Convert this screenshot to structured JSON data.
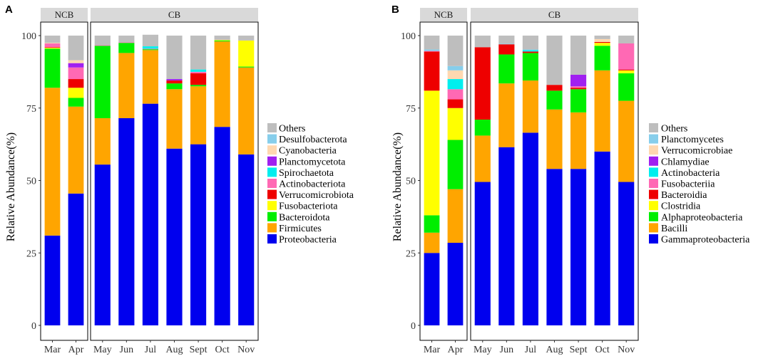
{
  "chart_data": [
    {
      "panel": "A",
      "type": "bar",
      "stacked": true,
      "ylabel": "Relative Abundance(%)",
      "xlabel": "",
      "ylim": [
        0,
        100
      ],
      "yticks": [
        0,
        25,
        50,
        75,
        100
      ],
      "facets": [
        {
          "label": "NCB",
          "categories": [
            "Mar",
            "Apr"
          ]
        },
        {
          "label": "CB",
          "categories": [
            "May",
            "Jun",
            "Jul",
            "Aug",
            "Sept",
            "Oct",
            "Nov"
          ]
        }
      ],
      "categories": [
        "Mar",
        "Apr",
        "May",
        "Jun",
        "Jul",
        "Aug",
        "Sept",
        "Oct",
        "Nov"
      ],
      "legend_title": "",
      "legend_position": "right",
      "series": [
        {
          "name": "Proteobacteria",
          "color": "#0000EE",
          "values": [
            31,
            45.5,
            55.5,
            71.5,
            76.5,
            61,
            62.5,
            68.5,
            59
          ]
        },
        {
          "name": "Firmicutes",
          "color": "#FFA500",
          "values": [
            51,
            30,
            16,
            22.5,
            18.5,
            20.5,
            20,
            29.5,
            30
          ]
        },
        {
          "name": "Bacteroidota",
          "color": "#00EE00",
          "values": [
            13.5,
            3,
            25,
            3.5,
            0.3,
            2,
            0.5,
            0.3,
            0.3
          ]
        },
        {
          "name": "Fusobacteriota",
          "color": "#FFFF00",
          "values": [
            0.3,
            3.5,
            0,
            0,
            0,
            0,
            0,
            0.2,
            9
          ]
        },
        {
          "name": "Verrucomicrobiota",
          "color": "#EE0000",
          "values": [
            0.2,
            3,
            0,
            0,
            0,
            1,
            4,
            0,
            0
          ]
        },
        {
          "name": "Actinobacteriota",
          "color": "#FF69B4",
          "values": [
            1.3,
            4,
            0.2,
            0.2,
            0.2,
            0,
            0.5,
            0,
            0
          ]
        },
        {
          "name": "Spirochaetota",
          "color": "#00EEEE",
          "values": [
            0,
            0,
            0,
            0,
            0.8,
            0,
            0.8,
            0,
            0
          ]
        },
        {
          "name": "Planctomycetota",
          "color": "#A020F0",
          "values": [
            0,
            1.5,
            0,
            0,
            0,
            0.5,
            0,
            0,
            0
          ]
        },
        {
          "name": "Cyanobacteria",
          "color": "#FFD8B0",
          "values": [
            0.2,
            1,
            0,
            0,
            0,
            0,
            0,
            0,
            0
          ]
        },
        {
          "name": "Desulfobacterota",
          "color": "#87CEEB",
          "values": [
            0,
            0,
            0,
            0,
            0,
            0,
            0,
            0,
            0
          ]
        },
        {
          "name": "Others",
          "color": "#BEBEBE",
          "values": [
            2.5,
            8.5,
            3.3,
            2.3,
            4,
            15,
            11.7,
            1.5,
            1.7
          ]
        }
      ]
    },
    {
      "panel": "B",
      "type": "bar",
      "stacked": true,
      "ylabel": "Relative Abundance(%)",
      "xlabel": "",
      "ylim": [
        0,
        100
      ],
      "yticks": [
        0,
        25,
        50,
        75,
        100
      ],
      "facets": [
        {
          "label": "NCB",
          "categories": [
            "Mar",
            "Apr"
          ]
        },
        {
          "label": "CB",
          "categories": [
            "May",
            "Jun",
            "Jul",
            "Aug",
            "Sept",
            "Oct",
            "Nov"
          ]
        }
      ],
      "categories": [
        "Mar",
        "Apr",
        "May",
        "Jun",
        "Jul",
        "Aug",
        "Sept",
        "Oct",
        "Nov"
      ],
      "legend_title": "",
      "legend_position": "right",
      "series": [
        {
          "name": "Gammaproteobacteria",
          "color": "#0000EE",
          "values": [
            25,
            28.5,
            49.5,
            61.5,
            66.5,
            54,
            54,
            60,
            49.5
          ]
        },
        {
          "name": "Bacilli",
          "color": "#FFA500",
          "values": [
            7,
            18.5,
            16,
            22,
            18,
            20.5,
            19.5,
            28,
            28
          ]
        },
        {
          "name": "Alphaproteobacteria",
          "color": "#00EE00",
          "values": [
            6,
            17,
            5.5,
            10,
            9.5,
            6.5,
            8,
            8.5,
            9.5
          ]
        },
        {
          "name": "Clostridia",
          "color": "#FFFF00",
          "values": [
            43,
            11,
            0,
            0,
            0,
            0,
            0,
            1,
            1
          ]
        },
        {
          "name": "Bacteroidia",
          "color": "#EE0000",
          "values": [
            13.5,
            3,
            25,
            3.5,
            0.5,
            2,
            0.5,
            0.3,
            0.3
          ]
        },
        {
          "name": "Fusobacteriia",
          "color": "#FF69B4",
          "values": [
            0.2,
            3.5,
            0,
            0,
            0,
            0,
            0.5,
            0,
            9
          ]
        },
        {
          "name": "Actinobacteria",
          "color": "#00EEEE",
          "values": [
            0,
            3.5,
            0,
            0,
            0.5,
            0,
            0,
            0,
            0
          ]
        },
        {
          "name": "Chlamydiae",
          "color": "#A020F0",
          "values": [
            0,
            0,
            0,
            0,
            0,
            0,
            4,
            0,
            0
          ]
        },
        {
          "name": "Verrucomicrobiae",
          "color": "#FFD8B0",
          "values": [
            0,
            3,
            0,
            0,
            0,
            0,
            0,
            1,
            0
          ]
        },
        {
          "name": "Planctomycetes",
          "color": "#87CEEB",
          "values": [
            0.5,
            1.5,
            0,
            0.2,
            0.2,
            0,
            0,
            0,
            0
          ]
        },
        {
          "name": "Others",
          "color": "#BEBEBE",
          "values": [
            4.8,
            10.5,
            4,
            2.8,
            4.8,
            17,
            13.5,
            1.2,
            2.7
          ]
        }
      ]
    }
  ]
}
